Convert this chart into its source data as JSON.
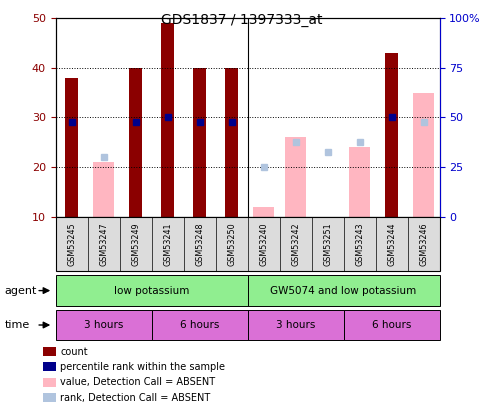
{
  "title": "GDS1837 / 1397333_at",
  "samples": [
    "GSM53245",
    "GSM53247",
    "GSM53249",
    "GSM53241",
    "GSM53248",
    "GSM53250",
    "GSM53240",
    "GSM53242",
    "GSM53251",
    "GSM53243",
    "GSM53244",
    "GSM53246"
  ],
  "count_values": [
    38,
    null,
    40,
    49,
    40,
    40,
    null,
    null,
    null,
    null,
    43,
    null
  ],
  "count_color": "#8B0000",
  "absent_bar_values": [
    null,
    21,
    null,
    null,
    null,
    null,
    12,
    26,
    null,
    24,
    null,
    35
  ],
  "absent_bar_color": "#FFB6C1",
  "percentile_values": [
    29,
    null,
    29,
    30,
    29,
    29,
    null,
    null,
    null,
    null,
    30,
    null
  ],
  "percentile_color": "#00008B",
  "absent_rank_values": [
    null,
    22,
    null,
    null,
    null,
    null,
    20,
    25,
    23,
    25,
    null,
    29
  ],
  "absent_rank_color": "#B0C4DE",
  "ylim_left": [
    10,
    50
  ],
  "ylim_right": [
    0,
    100
  ],
  "yticks_left": [
    10,
    20,
    30,
    40,
    50
  ],
  "yticks_right": [
    0,
    25,
    50,
    75,
    100
  ],
  "yticklabels_right": [
    "0",
    "25",
    "50",
    "75",
    "100%"
  ],
  "agent_groups": [
    {
      "label": "low potassium",
      "start": 0,
      "end": 6,
      "color": "#90EE90"
    },
    {
      "label": "GW5074 and low potassium",
      "start": 6,
      "end": 12,
      "color": "#90EE90"
    }
  ],
  "time_groups": [
    {
      "label": "3 hours",
      "start": 0,
      "end": 3,
      "color": "#DA70D6"
    },
    {
      "label": "6 hours",
      "start": 3,
      "end": 6,
      "color": "#DA70D6"
    },
    {
      "label": "3 hours",
      "start": 6,
      "end": 9,
      "color": "#DA70D6"
    },
    {
      "label": "6 hours",
      "start": 9,
      "end": 12,
      "color": "#DA70D6"
    }
  ],
  "legend_items": [
    {
      "label": "count",
      "color": "#8B0000"
    },
    {
      "label": "percentile rank within the sample",
      "color": "#00008B"
    },
    {
      "label": "value, Detection Call = ABSENT",
      "color": "#FFB6C1"
    },
    {
      "label": "rank, Detection Call = ABSENT",
      "color": "#B0C4DE"
    }
  ],
  "bar_width": 0.4,
  "bg_color": "#DCDCDC"
}
